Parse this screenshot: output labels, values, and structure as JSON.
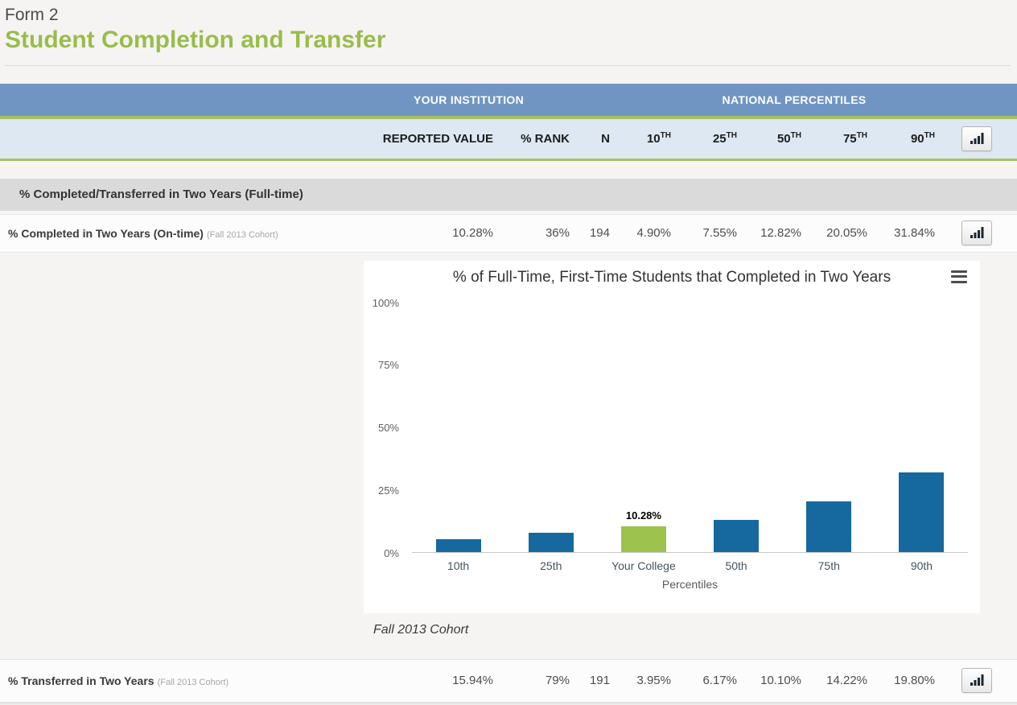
{
  "page": {
    "form_label": "Form 2",
    "title": "Student Completion and Transfer"
  },
  "table": {
    "group_your_institution": "YOUR INSTITUTION",
    "group_national_percentiles": "NATIONAL PERCENTILES",
    "columns": {
      "reported_value": "REPORTED VALUE",
      "rank": "% RANK",
      "n": "N",
      "p10": {
        "base": "10",
        "sup": "TH"
      },
      "p25": {
        "base": "25",
        "sup": "TH"
      },
      "p50": {
        "base": "50",
        "sup": "TH"
      },
      "p75": {
        "base": "75",
        "sup": "TH"
      },
      "p90": {
        "base": "90",
        "sup": "TH"
      }
    },
    "section_title": "% Completed/Transferred in Two Years (Full-time)",
    "rows": [
      {
        "label": "% Completed in Two Years (On-time)",
        "cohort": "(Fall 2013 Cohort)",
        "reported_value": "10.28%",
        "rank": "36%",
        "n": "194",
        "p10": "4.90%",
        "p25": "7.55%",
        "p50": "12.82%",
        "p75": "20.05%",
        "p90": "31.84%"
      },
      {
        "label": "% Transferred in Two Years",
        "cohort": "(Fall 2013 Cohort)",
        "reported_value": "15.94%",
        "rank": "79%",
        "n": "191",
        "p10": "3.95%",
        "p25": "6.17%",
        "p50": "10.10%",
        "p75": "14.22%",
        "p90": "19.80%"
      }
    ]
  },
  "chart_data": {
    "type": "bar",
    "title": "% of Full-Time, First-Time Students that Completed in Two Years",
    "categories": [
      "10th",
      "25th",
      "Your College",
      "50th",
      "75th",
      "90th"
    ],
    "values": [
      4.9,
      7.55,
      10.28,
      12.82,
      20.05,
      31.84
    ],
    "highlight_index": 2,
    "data_label": {
      "index": 2,
      "text": "10.28%"
    },
    "colors": {
      "bar": "#15699e",
      "highlight": "#9ec24e"
    },
    "xlabel": "Percentiles",
    "ylabel": "",
    "y_ticks": [
      "0%",
      "25%",
      "50%",
      "75%",
      "100%"
    ],
    "ylim": [
      0,
      100
    ],
    "grid": false,
    "legend": false,
    "caption": "Fall 2013 Cohort"
  }
}
